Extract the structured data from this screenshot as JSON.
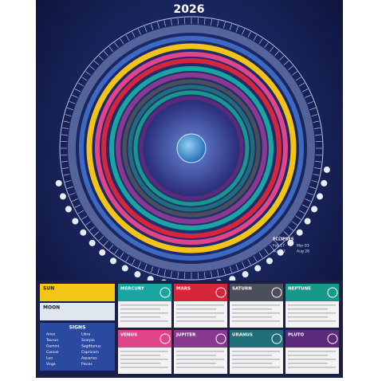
{
  "title": "2026",
  "eclipses": {
    "heading": "ECLIPSES",
    "dates": [
      "Feb 17",
      "Mar 03",
      "Aug 12",
      "Aug 28"
    ]
  },
  "luminaries": [
    {
      "name": "SUN",
      "color": "#f5c518"
    },
    {
      "name": "MOON",
      "color": "#dfe6f0"
    }
  ],
  "planets": [
    {
      "name": "MERCURY",
      "color": "#1aa5a0"
    },
    {
      "name": "MARS",
      "color": "#d6263b"
    },
    {
      "name": "SATURN",
      "color": "#4b4f5a"
    },
    {
      "name": "NEPTUNE",
      "color": "#17988a"
    },
    {
      "name": "VENUS",
      "color": "#e0458a"
    },
    {
      "name": "JUPITER",
      "color": "#8a3a8e"
    },
    {
      "name": "URANUS",
      "color": "#1f6e78"
    },
    {
      "name": "PLUTO",
      "color": "#5b2a7a"
    }
  ],
  "signs": {
    "heading": "SIGNS",
    "list": [
      "Aries",
      "Taurus",
      "Gemini",
      "Cancer",
      "Leo",
      "Virgo",
      "Libra",
      "Scorpio",
      "Sagittarius",
      "Capricorn",
      "Aquarius",
      "Pisces"
    ]
  }
}
